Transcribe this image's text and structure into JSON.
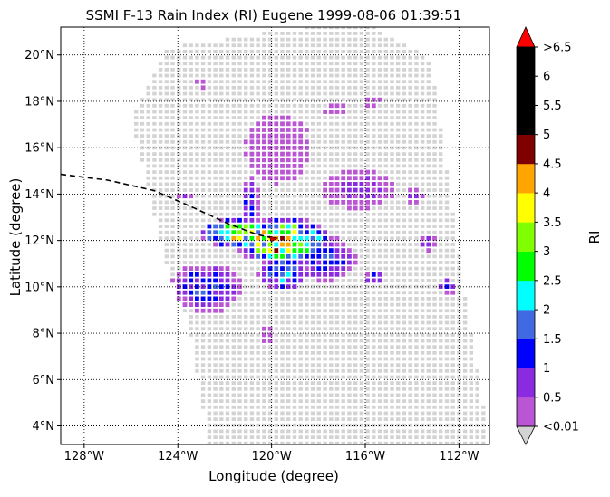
{
  "chart_data": {
    "type": "heatmap",
    "title": "SSMI F-13 Rain Index (RI) Eugene 1999-08-06 01:39:51",
    "xlabel": "Longitude (degree)",
    "ylabel": "Latitude (degree)",
    "xlim": [
      -129,
      -110.7
    ],
    "ylim": [
      3.2,
      21.2
    ],
    "x_ticks": [
      {
        "value": -128,
        "label": "128°W"
      },
      {
        "value": -124,
        "label": "124°W"
      },
      {
        "value": -120,
        "label": "120°W"
      },
      {
        "value": -116,
        "label": "116°W"
      },
      {
        "value": -112,
        "label": "112°W"
      }
    ],
    "y_ticks": [
      {
        "value": 4,
        "label": "4°N"
      },
      {
        "value": 6,
        "label": "6°N"
      },
      {
        "value": 8,
        "label": "8°N"
      },
      {
        "value": 10,
        "label": "10°N"
      },
      {
        "value": 12,
        "label": "12°N"
      },
      {
        "value": 14,
        "label": "14°N"
      },
      {
        "value": 16,
        "label": "16°N"
      },
      {
        "value": 18,
        "label": "18°N"
      },
      {
        "value": 20,
        "label": "20°N"
      }
    ],
    "grid": "dotted",
    "no_rain_color": "#d3d3d3",
    "colorbar": {
      "label": "RI",
      "tick_labels": [
        "<0.01",
        "0.5",
        "1",
        "1.5",
        "2",
        "2.5",
        "3",
        "3.5",
        "4",
        "4.5",
        "5",
        "5.5",
        "6",
        ">6.5"
      ],
      "colors": [
        "#ba55d3",
        "#8a2be2",
        "#0000ff",
        "#4169e1",
        "#00ffff",
        "#00ff00",
        "#7fff00",
        "#ffff00",
        "#ffa500",
        "#800000",
        "#000000",
        "#000000",
        "#000000"
      ],
      "over_color": "#ff0000",
      "under_color": "#d3d3d3"
    },
    "swath": [
      {
        "lon": -124.5,
        "lat": 20.3
      },
      {
        "lon": -118.6,
        "lat": 21.2
      },
      {
        "lon": -115.6,
        "lat": 21.2
      },
      {
        "lon": -113.2,
        "lat": 19.8
      },
      {
        "lon": -112.1,
        "lat": 12.0
      },
      {
        "lon": -110.7,
        "lat": 3.2
      },
      {
        "lon": -122.7,
        "lat": 3.2
      },
      {
        "lon": -123.5,
        "lat": 8.2
      },
      {
        "lon": -124.5,
        "lat": 11.0
      },
      {
        "lon": -126.0,
        "lat": 17.3
      }
    ],
    "track": [
      {
        "lon": -129.0,
        "lat": 14.85
      },
      {
        "lon": -127.0,
        "lat": 14.6
      },
      {
        "lon": -125.0,
        "lat": 14.15
      },
      {
        "lon": -123.3,
        "lat": 13.4
      },
      {
        "lon": -121.8,
        "lat": 12.7
      },
      {
        "lon": -120.6,
        "lat": 12.25
      },
      {
        "lon": -119.9,
        "lat": 12.1
      }
    ],
    "storm_center": {
      "lon": -119.9,
      "lat": 12.1
    },
    "rain_clusters": [
      {
        "lon": -119.6,
        "lat": 12.0,
        "rx": 1.9,
        "ry": 0.9,
        "peak": 3.2
      },
      {
        "lon": -121.4,
        "lat": 12.3,
        "rx": 1.5,
        "ry": 0.6,
        "peak": 2.6
      },
      {
        "lon": -119.5,
        "lat": 10.6,
        "rx": 1.0,
        "ry": 0.7,
        "peak": 1.4
      },
      {
        "lon": -122.8,
        "lat": 10.0,
        "rx": 1.4,
        "ry": 0.9,
        "peak": 1.1
      },
      {
        "lon": -117.8,
        "lat": 11.2,
        "rx": 1.3,
        "ry": 0.9,
        "peak": 1.0
      },
      {
        "lon": -120.9,
        "lat": 13.6,
        "rx": 0.4,
        "ry": 1.1,
        "peak": 0.9
      },
      {
        "lon": -116.3,
        "lat": 14.2,
        "rx": 1.5,
        "ry": 0.8,
        "peak": 0.5
      },
      {
        "lon": -119.7,
        "lat": 16.0,
        "rx": 1.4,
        "ry": 1.5,
        "peak": 0.3
      },
      {
        "lon": -122.7,
        "lat": 9.6,
        "rx": 1.1,
        "ry": 0.8,
        "peak": 0.2
      },
      {
        "lon": -113.9,
        "lat": 13.9,
        "rx": 0.4,
        "ry": 0.3,
        "peak": 0.8
      },
      {
        "lon": -123.7,
        "lat": 13.9,
        "rx": 0.3,
        "ry": 0.2,
        "peak": 0.6
      },
      {
        "lon": -113.3,
        "lat": 11.9,
        "rx": 0.3,
        "ry": 0.3,
        "peak": 0.9
      },
      {
        "lon": -112.5,
        "lat": 10.0,
        "rx": 0.4,
        "ry": 0.3,
        "peak": 0.8
      },
      {
        "lon": -115.6,
        "lat": 10.4,
        "rx": 0.4,
        "ry": 0.3,
        "peak": 1.2
      },
      {
        "lon": -120.2,
        "lat": 7.9,
        "rx": 0.3,
        "ry": 0.4,
        "peak": 0.3
      },
      {
        "lon": -117.3,
        "lat": 17.6,
        "rx": 0.5,
        "ry": 0.3,
        "peak": 0.2
      },
      {
        "lon": -115.7,
        "lat": 18.0,
        "rx": 0.4,
        "ry": 0.3,
        "peak": 0.2
      },
      {
        "lon": -123.0,
        "lat": 18.8,
        "rx": 0.3,
        "ry": 0.3,
        "peak": 0.2
      }
    ]
  }
}
